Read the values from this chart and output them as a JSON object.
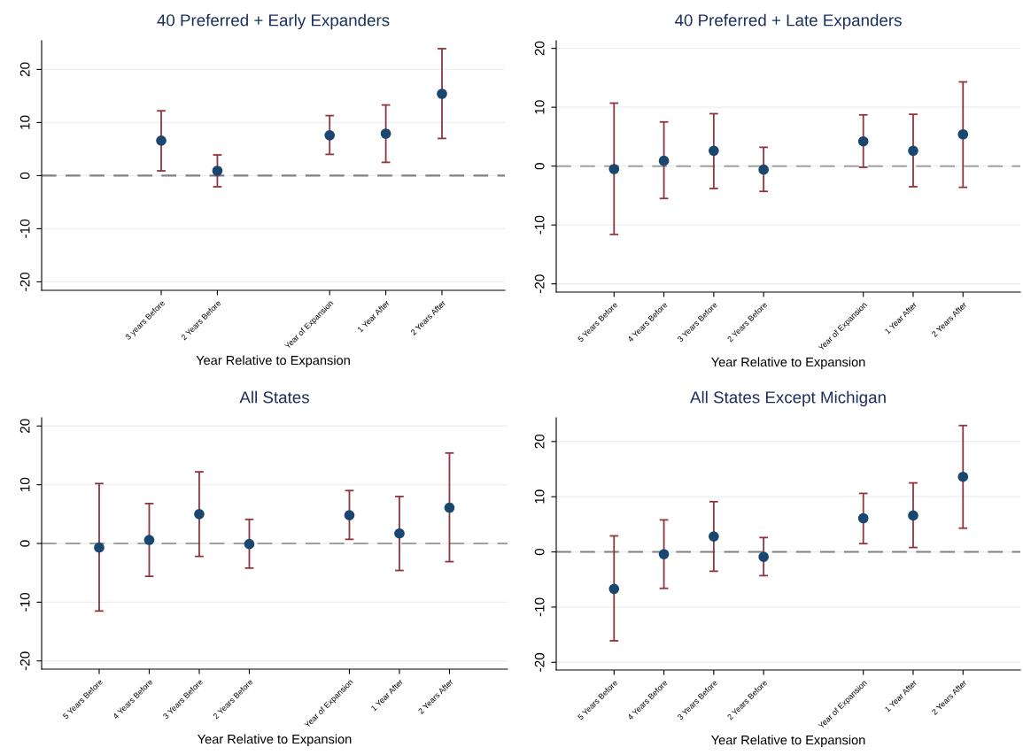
{
  "chart_data": [
    {
      "type": "scatter",
      "title": "40 Preferred + Early Expanders",
      "xlabel": "Year Relative to Expansion",
      "x": [
        -3,
        -2,
        0,
        1,
        2
      ],
      "xlim": [
        -5.13,
        3.12
      ],
      "xticks": [
        {
          "value": -3,
          "label": "3 years Before"
        },
        {
          "value": -2,
          "label": "2 Years Before"
        },
        {
          "value": 0,
          "label": "Year of Expansion"
        },
        {
          "value": 1,
          "label": "1 Year After"
        },
        {
          "value": 2,
          "label": "2 Years After"
        }
      ],
      "ylim": [
        -21.6,
        25.4
      ],
      "yticks": [
        -20,
        -10,
        0,
        10,
        20
      ],
      "grid": "y",
      "marker": "circle",
      "series": [
        {
          "color": "#1a476f",
          "values": [
            6.6,
            0.9,
            7.6,
            7.9,
            15.4
          ],
          "errors": [
            [
              0.9,
              12.2
            ],
            [
              -2.1,
              3.9
            ],
            [
              4.0,
              11.3
            ],
            [
              2.5,
              13.3
            ],
            [
              7.0,
              23.9
            ]
          ]
        }
      ],
      "ref_lines": [
        {
          "axis": "y",
          "value": 0,
          "color": "#808080",
          "line_style": "dashed"
        }
      ]
    },
    {
      "type": "scatter",
      "title": "40 Preferred + Late Expanders",
      "xlabel": "Year Relative to Expansion",
      "x": [
        -5,
        -4,
        -3,
        -2,
        0,
        1,
        2
      ],
      "xlim": [
        -6.16,
        3.15
      ],
      "xticks": [
        {
          "value": -5,
          "label": "5 Years Before"
        },
        {
          "value": -4,
          "label": "4 Years Before"
        },
        {
          "value": -3,
          "label": "3 Years Before"
        },
        {
          "value": -2,
          "label": "2 Years Before"
        },
        {
          "value": 0,
          "label": "Year of Expansion"
        },
        {
          "value": 1,
          "label": "1 Year After"
        },
        {
          "value": 2,
          "label": "2 Years After"
        }
      ],
      "ylim": [
        -21.4,
        21.3
      ],
      "yticks": [
        -20,
        -10,
        0,
        10,
        20
      ],
      "grid": "y",
      "marker": "circle",
      "series": [
        {
          "color": "#1a476f",
          "values": [
            -0.5,
            0.9,
            2.6,
            -0.6,
            4.2,
            2.6,
            5.4
          ],
          "errors": [
            [
              -11.6,
              10.7
            ],
            [
              -5.5,
              7.5
            ],
            [
              -3.8,
              8.9
            ],
            [
              -4.3,
              3.2
            ],
            [
              -0.2,
              8.7
            ],
            [
              -3.5,
              8.8
            ],
            [
              -3.6,
              14.3
            ]
          ]
        }
      ],
      "ref_lines": [
        {
          "axis": "y",
          "value": 0,
          "color": "#a0a0a0",
          "line_style": "dashed"
        }
      ]
    },
    {
      "type": "scatter",
      "title": "All States",
      "xlabel": "Year Relative to Expansion",
      "x": [
        -5,
        -4,
        -3,
        -2,
        0,
        1,
        2
      ],
      "xlim": [
        -6.15,
        3.16
      ],
      "xticks": [
        {
          "value": -5,
          "label": "5 Years Before"
        },
        {
          "value": -4,
          "label": "4 Years Before"
        },
        {
          "value": -3,
          "label": "3 Years Before"
        },
        {
          "value": -2,
          "label": "2 Years Before"
        },
        {
          "value": 0,
          "label": "Year of Expansion"
        },
        {
          "value": 1,
          "label": "1 Year After"
        },
        {
          "value": 2,
          "label": "2 Years After"
        }
      ],
      "ylim": [
        -21.4,
        21.4
      ],
      "yticks": [
        -20,
        -10,
        0,
        10,
        20
      ],
      "grid": "y",
      "marker": "circle",
      "series": [
        {
          "color": "#1a476f",
          "values": [
            -0.7,
            0.6,
            5.0,
            -0.1,
            4.8,
            1.7,
            6.1
          ],
          "errors": [
            [
              -11.5,
              10.2
            ],
            [
              -5.6,
              6.8
            ],
            [
              -2.2,
              12.2
            ],
            [
              -4.2,
              4.1
            ],
            [
              0.7,
              9.0
            ],
            [
              -4.6,
              8.0
            ],
            [
              -3.1,
              15.4
            ]
          ]
        }
      ],
      "ref_lines": [
        {
          "axis": "y",
          "value": 0,
          "color": "#a0a0a0",
          "line_style": "dashed"
        }
      ]
    },
    {
      "type": "scatter",
      "title": "All States Except Michigan",
      "xlabel": "Year Relative to Expansion",
      "x": [
        -5,
        -4,
        -3,
        -2,
        0,
        1,
        2
      ],
      "xlim": [
        -6.16,
        3.15
      ],
      "xticks": [
        {
          "value": -5,
          "label": "5 Years Before"
        },
        {
          "value": -4,
          "label": "4 Years Before"
        },
        {
          "value": -3,
          "label": "3 Years Before"
        },
        {
          "value": -2,
          "label": "2 Years Before"
        },
        {
          "value": 0,
          "label": "Year of Expansion"
        },
        {
          "value": 1,
          "label": "1 Year After"
        },
        {
          "value": 2,
          "label": "2 Years After"
        }
      ],
      "ylim": [
        -21.4,
        24.3
      ],
      "yticks": [
        -20,
        -10,
        0,
        10,
        20
      ],
      "grid": "y",
      "marker": "circle",
      "series": [
        {
          "color": "#1a476f",
          "values": [
            -6.7,
            -0.4,
            2.8,
            -0.9,
            6.1,
            6.6,
            13.6
          ],
          "errors": [
            [
              -16.1,
              2.9
            ],
            [
              -6.6,
              5.8
            ],
            [
              -3.5,
              9.1
            ],
            [
              -4.3,
              2.6
            ],
            [
              1.5,
              10.6
            ],
            [
              0.8,
              12.5
            ],
            [
              4.3,
              22.9
            ]
          ]
        }
      ],
      "ref_lines": [
        {
          "axis": "y",
          "value": 0,
          "color": "#808080",
          "line_style": "dashed"
        }
      ]
    }
  ]
}
